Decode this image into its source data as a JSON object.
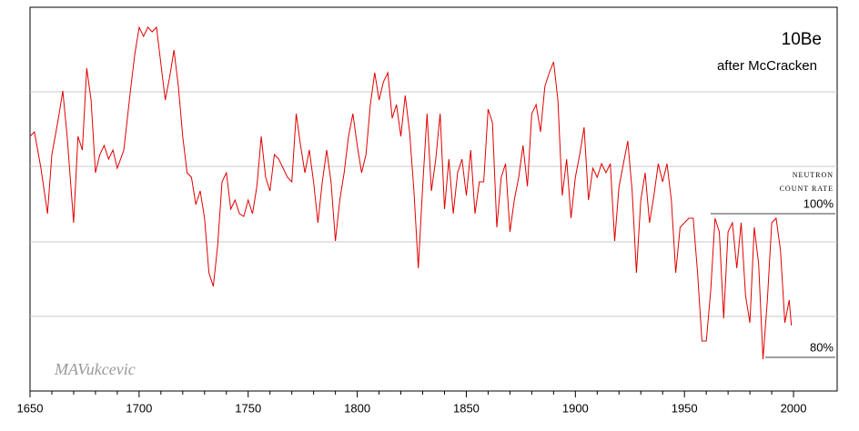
{
  "chart_data": {
    "type": "line",
    "title": "10Be",
    "subtitle": "after McCracken",
    "watermark": "MAVukcevic",
    "x": [
      1650,
      1652,
      1655,
      1658,
      1660,
      1663,
      1665,
      1667,
      1670,
      1672,
      1674,
      1676,
      1678,
      1680,
      1682,
      1684,
      1686,
      1688,
      1690,
      1693,
      1696,
      1698,
      1700,
      1702,
      1704,
      1706,
      1708,
      1710,
      1712,
      1714,
      1716,
      1718,
      1720,
      1722,
      1724,
      1726,
      1728,
      1730,
      1732,
      1734,
      1736,
      1738,
      1740,
      1742,
      1744,
      1746,
      1748,
      1750,
      1752,
      1754,
      1756,
      1758,
      1760,
      1762,
      1764,
      1766,
      1768,
      1770,
      1772,
      1774,
      1776,
      1778,
      1780,
      1782,
      1784,
      1786,
      1788,
      1790,
      1792,
      1794,
      1796,
      1798,
      1800,
      1802,
      1804,
      1806,
      1808,
      1810,
      1812,
      1814,
      1816,
      1818,
      1820,
      1822,
      1824,
      1826,
      1828,
      1830,
      1832,
      1834,
      1836,
      1838,
      1840,
      1842,
      1844,
      1846,
      1848,
      1850,
      1852,
      1854,
      1856,
      1858,
      1860,
      1862,
      1864,
      1866,
      1868,
      1870,
      1872,
      1874,
      1876,
      1878,
      1880,
      1882,
      1884,
      1886,
      1888,
      1890,
      1892,
      1894,
      1896,
      1898,
      1900,
      1902,
      1904,
      1906,
      1908,
      1910,
      1912,
      1914,
      1916,
      1918,
      1920,
      1922,
      1924,
      1926,
      1928,
      1930,
      1932,
      1934,
      1936,
      1938,
      1940,
      1942,
      1944,
      1946,
      1948,
      1950,
      1952,
      1954,
      1956,
      1958,
      1960,
      1962,
      1964,
      1966,
      1968,
      1970,
      1972,
      1974,
      1976,
      1978,
      1980,
      1982,
      1984,
      1986,
      1988,
      1990,
      1992,
      1994,
      1996,
      1998,
      1999
    ],
    "series": [
      {
        "color": "#e00000",
        "values": [
          280,
          285,
          245,
          195,
          260,
          300,
          330,
          280,
          185,
          280,
          265,
          355,
          320,
          240,
          260,
          270,
          255,
          265,
          245,
          265,
          330,
          370,
          400,
          390,
          400,
          395,
          400,
          360,
          320,
          345,
          375,
          335,
          280,
          240,
          235,
          205,
          220,
          190,
          130,
          115,
          160,
          230,
          240,
          200,
          210,
          195,
          192,
          210,
          195,
          225,
          280,
          235,
          220,
          260,
          255,
          245,
          235,
          230,
          305,
          270,
          240,
          265,
          230,
          185,
          230,
          265,
          230,
          165,
          210,
          240,
          280,
          305,
          270,
          240,
          260,
          315,
          350,
          320,
          340,
          350,
          300,
          315,
          280,
          325,
          285,
          220,
          135,
          225,
          305,
          220,
          255,
          305,
          200,
          255,
          195,
          240,
          255,
          215,
          265,
          195,
          230,
          230,
          310,
          295,
          180,
          235,
          250,
          175,
          210,
          235,
          270,
          225,
          305,
          315,
          285,
          335,
          350,
          362,
          320,
          215,
          255,
          190,
          235,
          260,
          290,
          210,
          245,
          235,
          250,
          240,
          250,
          165,
          225,
          250,
          275,
          220,
          130,
          210,
          240,
          185,
          215,
          250,
          230,
          250,
          210,
          130,
          180,
          185,
          190,
          190,
          130,
          55,
          55,
          110,
          190,
          175,
          80,
          175,
          185,
          135,
          185,
          105,
          75,
          180,
          140,
          35,
          100,
          185,
          190,
          155,
          75,
          100,
          72
        ]
      }
    ],
    "xlim": [
      1650,
      2020
    ],
    "xticks": [
      1650,
      1700,
      1750,
      1800,
      1850,
      1900,
      1950,
      2000
    ],
    "ylim": [
      0,
      422
    ],
    "ygrid": [
      82,
      164,
      247,
      329
    ],
    "reference_lines": [
      {
        "value": 195,
        "from": 1962,
        "label": "100%",
        "note": [
          "NEUTRON",
          "COUNT RATE"
        ]
      },
      {
        "value": 37,
        "from": 1987,
        "label": "80%"
      }
    ]
  }
}
